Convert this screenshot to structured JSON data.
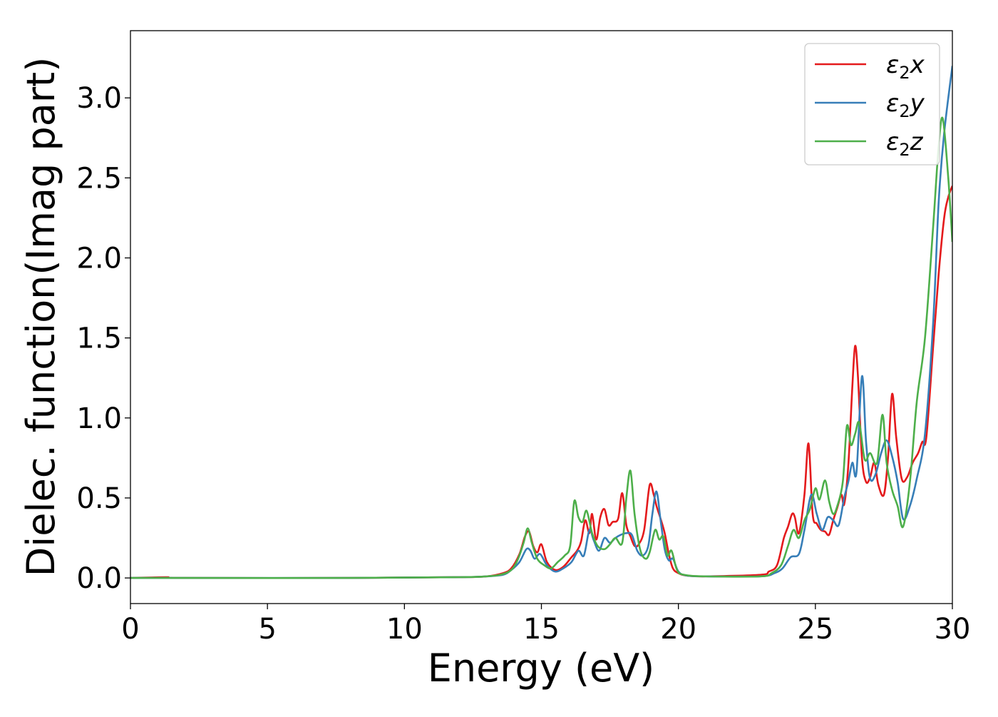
{
  "chart_data": {
    "type": "line",
    "xlabel": "Energy (eV)",
    "ylabel": "Dielec. function(Imag part)",
    "xlim": [
      0,
      30
    ],
    "ylim": [
      -0.16,
      3.42
    ],
    "x_ticks": [
      "0",
      "5",
      "10",
      "15",
      "20",
      "25",
      "30"
    ],
    "x_tick_values": [
      0,
      5,
      10,
      15,
      20,
      25,
      30
    ],
    "y_ticks": [
      "0.0",
      "0.5",
      "1.0",
      "1.5",
      "2.0",
      "2.5",
      "3.0"
    ],
    "y_tick_values": [
      0,
      0.5,
      1.0,
      1.5,
      2.0,
      2.5,
      3.0
    ],
    "grid": false,
    "legend_position": "top-right",
    "series": [
      {
        "name": "ε₂x",
        "legend_base": "ε",
        "legend_sub": "2",
        "legend_suffix": "x",
        "color": "#e41a1c",
        "x": [
          0,
          1.3,
          2,
          8,
          12,
          13,
          13.6,
          13.9,
          14.2,
          14.4,
          14.55,
          14.7,
          14.85,
          15.0,
          15.2,
          15.5,
          15.8,
          16.1,
          16.3,
          16.45,
          16.6,
          16.75,
          16.85,
          17.0,
          17.15,
          17.3,
          17.45,
          17.6,
          17.8,
          17.95,
          18.1,
          18.25,
          18.4,
          18.55,
          18.75,
          18.95,
          19.1,
          19.2,
          19.35,
          19.5,
          19.65,
          19.8,
          20.0,
          20.3,
          21,
          23,
          23.3,
          23.6,
          23.85,
          24.0,
          24.15,
          24.25,
          24.4,
          24.6,
          24.75,
          24.9,
          25.05,
          25.2,
          25.35,
          25.5,
          25.65,
          25.8,
          25.95,
          26.05,
          26.2,
          26.35,
          26.45,
          26.55,
          26.7,
          26.85,
          27.0,
          27.15,
          27.3,
          27.5,
          27.65,
          27.8,
          27.95,
          28.15,
          28.35,
          28.55,
          28.75,
          28.9,
          29.05,
          29.3,
          29.5,
          29.7,
          29.85,
          30.0
        ],
        "y": [
          0,
          0.005,
          0,
          0,
          0.005,
          0.01,
          0.03,
          0.06,
          0.15,
          0.26,
          0.29,
          0.2,
          0.16,
          0.21,
          0.1,
          0.05,
          0.07,
          0.13,
          0.17,
          0.23,
          0.36,
          0.28,
          0.4,
          0.24,
          0.38,
          0.43,
          0.33,
          0.35,
          0.37,
          0.53,
          0.33,
          0.26,
          0.2,
          0.21,
          0.3,
          0.58,
          0.52,
          0.45,
          0.37,
          0.28,
          0.15,
          0.06,
          0.03,
          0.015,
          0.01,
          0.02,
          0.04,
          0.08,
          0.25,
          0.32,
          0.4,
          0.38,
          0.28,
          0.52,
          0.84,
          0.4,
          0.34,
          0.3,
          0.29,
          0.27,
          0.36,
          0.44,
          0.52,
          0.46,
          0.7,
          1.2,
          1.45,
          1.27,
          0.75,
          0.6,
          0.63,
          0.72,
          0.58,
          0.52,
          0.75,
          1.15,
          0.88,
          0.62,
          0.63,
          0.72,
          0.78,
          0.85,
          0.88,
          1.45,
          1.9,
          2.25,
          2.38,
          2.45
        ]
      },
      {
        "name": "ε₂y",
        "legend_base": "ε",
        "legend_sub": "2",
        "legend_suffix": "y",
        "color": "#377eb8",
        "x": [
          0,
          2,
          8,
          12,
          13,
          13.6,
          13.9,
          14.2,
          14.45,
          14.6,
          14.75,
          14.95,
          15.2,
          15.5,
          15.8,
          16.1,
          16.35,
          16.55,
          16.75,
          16.9,
          17.1,
          17.3,
          17.5,
          17.7,
          17.9,
          18.1,
          18.3,
          18.5,
          18.7,
          18.9,
          19.05,
          19.2,
          19.35,
          19.5,
          19.65,
          19.8,
          20.0,
          20.3,
          21,
          23,
          23.5,
          23.8,
          24.1,
          24.4,
          24.6,
          24.85,
          25.05,
          25.25,
          25.45,
          25.65,
          25.85,
          26.05,
          26.2,
          26.35,
          26.5,
          26.7,
          26.85,
          27.0,
          27.2,
          27.4,
          27.6,
          27.8,
          28.0,
          28.2,
          28.45,
          28.7,
          29.0,
          29.3,
          29.5,
          29.7,
          30.0
        ],
        "y": [
          0,
          0,
          0,
          0.005,
          0.01,
          0.02,
          0.05,
          0.1,
          0.18,
          0.17,
          0.12,
          0.15,
          0.08,
          0.04,
          0.06,
          0.1,
          0.17,
          0.14,
          0.3,
          0.24,
          0.17,
          0.25,
          0.22,
          0.25,
          0.27,
          0.28,
          0.27,
          0.17,
          0.14,
          0.2,
          0.4,
          0.54,
          0.36,
          0.18,
          0.11,
          0.12,
          0.04,
          0.015,
          0.01,
          0.01,
          0.03,
          0.06,
          0.13,
          0.15,
          0.3,
          0.52,
          0.4,
          0.3,
          0.38,
          0.36,
          0.33,
          0.5,
          0.6,
          0.72,
          0.66,
          1.26,
          0.85,
          0.62,
          0.65,
          0.78,
          0.86,
          0.76,
          0.6,
          0.37,
          0.45,
          0.62,
          0.9,
          1.6,
          2.35,
          2.78,
          3.2
        ]
      },
      {
        "name": "ε₂z",
        "legend_base": "ε",
        "legend_sub": "2",
        "legend_suffix": "z",
        "color": "#4daf4a",
        "x": [
          0,
          2,
          8,
          12,
          13,
          13.5,
          13.9,
          14.15,
          14.35,
          14.5,
          14.65,
          14.85,
          15.1,
          15.35,
          15.6,
          15.85,
          16.05,
          16.2,
          16.35,
          16.5,
          16.65,
          16.85,
          17.05,
          17.3,
          17.5,
          17.7,
          17.95,
          18.1,
          18.25,
          18.4,
          18.6,
          18.8,
          18.95,
          19.15,
          19.3,
          19.45,
          19.6,
          19.75,
          19.95,
          20.2,
          21,
          23,
          23.4,
          23.75,
          24.0,
          24.2,
          24.4,
          24.6,
          24.8,
          25.0,
          25.15,
          25.35,
          25.5,
          25.65,
          25.8,
          26.0,
          26.15,
          26.3,
          26.45,
          26.6,
          26.8,
          27.0,
          27.25,
          27.45,
          27.6,
          27.8,
          28.0,
          28.2,
          28.45,
          28.7,
          29.0,
          29.3,
          29.5,
          29.65,
          29.85,
          30.0
        ],
        "y": [
          0,
          0,
          0,
          0.005,
          0.01,
          0.02,
          0.05,
          0.12,
          0.22,
          0.31,
          0.22,
          0.12,
          0.08,
          0.06,
          0.1,
          0.14,
          0.2,
          0.48,
          0.38,
          0.35,
          0.42,
          0.28,
          0.2,
          0.18,
          0.21,
          0.25,
          0.22,
          0.5,
          0.67,
          0.4,
          0.18,
          0.12,
          0.16,
          0.3,
          0.24,
          0.26,
          0.14,
          0.17,
          0.05,
          0.02,
          0.01,
          0.01,
          0.03,
          0.08,
          0.2,
          0.3,
          0.25,
          0.36,
          0.43,
          0.56,
          0.49,
          0.61,
          0.48,
          0.4,
          0.45,
          0.6,
          0.95,
          0.83,
          0.9,
          0.97,
          0.74,
          0.78,
          0.72,
          1.02,
          0.72,
          0.55,
          0.45,
          0.32,
          0.6,
          1.1,
          1.5,
          2.2,
          2.7,
          2.87,
          2.5,
          2.1
        ]
      }
    ]
  }
}
